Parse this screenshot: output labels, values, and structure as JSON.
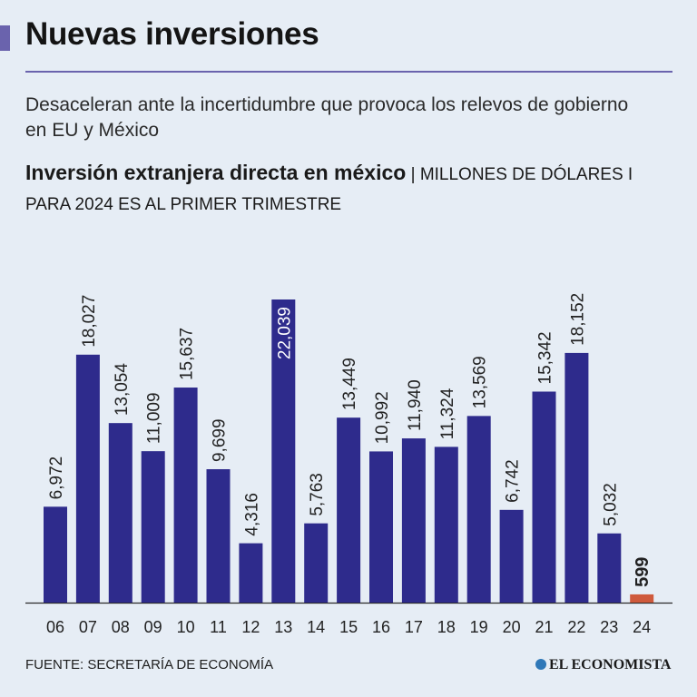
{
  "header": {
    "title": "Nuevas inversiones",
    "subtitle": "Desaceleran ante la incertidumbre que provoca los relevos de gobierno en EU y México"
  },
  "chart_heading": {
    "bold": "Inversión extranjera directa en méxico",
    "separator": " | ",
    "light": "MILLONES DE DÓLARES I PARA 2024 ES AL PRIMER TRIMESTRE"
  },
  "chart_data": {
    "type": "bar",
    "categories": [
      "06",
      "07",
      "08",
      "09",
      "10",
      "11",
      "12",
      "13",
      "14",
      "15",
      "16",
      "17",
      "18",
      "19",
      "20",
      "21",
      "22",
      "23",
      "24"
    ],
    "values": [
      6972,
      18027,
      13054,
      11009,
      15637,
      9699,
      4316,
      22039,
      5763,
      13449,
      10992,
      11940,
      11324,
      13569,
      6742,
      15342,
      18152,
      5032,
      599
    ],
    "labels": [
      "6,972",
      "18,027",
      "13,054",
      "11,009",
      "15,637",
      "9,699",
      "4,316",
      "22,039",
      "5,763",
      "13,449",
      "10,992",
      "11,940",
      "11,324",
      "13,569",
      "6,742",
      "15,342",
      "18,152",
      "5,032",
      "599"
    ],
    "title": "Inversión extranjera directa en méxico",
    "ylabel": "",
    "xlabel": "",
    "ylim": [
      0,
      22039
    ],
    "grid": false,
    "colors": {
      "bar": "#2e2b8c",
      "highlight": "#cf5a3c",
      "label_light": "#ffffff",
      "label_dark": "#222222"
    },
    "highlight_index": 18,
    "inside_label_index": 7
  },
  "footer": {
    "source": "FUENTE: SECRETARÍA DE ECONOMÍA",
    "brand": "EL ECONOMISTA",
    "brand_icon": "globe-icon"
  }
}
